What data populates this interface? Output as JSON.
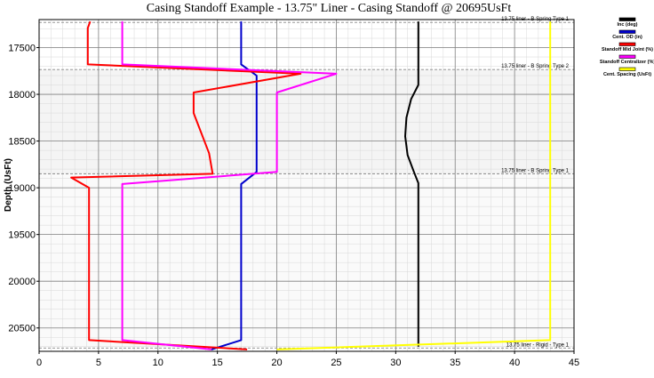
{
  "chart_data": {
    "type": "line",
    "title": "Casing Standoff Example - 13.75\" Liner - Casing Standoff @ 20695UsFt",
    "ylabel": "Depth (UsFt)",
    "xlabel": "",
    "xlim": [
      0,
      45
    ],
    "ylim": [
      17200,
      20750
    ],
    "y_inverted": true,
    "x_ticks": [
      0,
      5,
      10,
      15,
      20,
      25,
      30,
      35,
      40,
      45
    ],
    "y_ticks": [
      17500,
      18000,
      18500,
      19000,
      19500,
      20000,
      20500
    ],
    "grid": true,
    "legend_position": "right",
    "series": [
      {
        "name": "Inc (deg)",
        "color": "#000000",
        "points": [
          [
            31.9,
            17220
          ],
          [
            31.9,
            17900
          ],
          [
            31.3,
            18050
          ],
          [
            30.9,
            18250
          ],
          [
            30.8,
            18450
          ],
          [
            31.0,
            18650
          ],
          [
            31.5,
            18820
          ],
          [
            31.9,
            18950
          ],
          [
            31.9,
            20700
          ]
        ]
      },
      {
        "name": "Cent. OD (in)",
        "color": "#0000cc",
        "points": [
          [
            17.0,
            17220
          ],
          [
            17.0,
            17680
          ],
          [
            18.3,
            17800
          ],
          [
            18.3,
            18830
          ],
          [
            17.0,
            18960
          ],
          [
            17.0,
            20630
          ],
          [
            14.5,
            20730
          ]
        ]
      },
      {
        "name": "Standoff Mid Joint (%)",
        "color": "#ff0000",
        "points": [
          [
            4.3,
            17220
          ],
          [
            4.1,
            17290
          ],
          [
            4.1,
            17680
          ],
          [
            22.0,
            17780
          ],
          [
            13.0,
            17980
          ],
          [
            13.0,
            18200
          ],
          [
            14.3,
            18630
          ],
          [
            14.6,
            18850
          ],
          [
            2.7,
            18890
          ],
          [
            4.2,
            19000
          ],
          [
            4.2,
            20630
          ],
          [
            17.5,
            20730
          ]
        ]
      },
      {
        "name": "Standoff Centralizer (%)",
        "color": "#ff00ff",
        "points": [
          [
            7.0,
            17220
          ],
          [
            7.0,
            17680
          ],
          [
            25.0,
            17780
          ],
          [
            20.0,
            17980
          ],
          [
            20.0,
            18830
          ],
          [
            7.0,
            18960
          ],
          [
            7.0,
            20630
          ],
          [
            14.5,
            20730
          ]
        ]
      },
      {
        "name": "Cent. Spacing (UsFt)",
        "color": "#ffff00",
        "points": [
          [
            43.0,
            17220
          ],
          [
            43.0,
            20630
          ],
          [
            20.0,
            20730
          ]
        ]
      }
    ],
    "annotations": [
      {
        "text": "13.75 liner - B Spring Type 1",
        "y": 17230
      },
      {
        "text": "13.75 liner - B Spring Type 2",
        "y": 17735
      },
      {
        "text": "13.75 liner - B Spring Type 1",
        "y": 18850
      },
      {
        "text": "13.75 liner - Rigid - Type 1",
        "y": 20715
      }
    ]
  }
}
